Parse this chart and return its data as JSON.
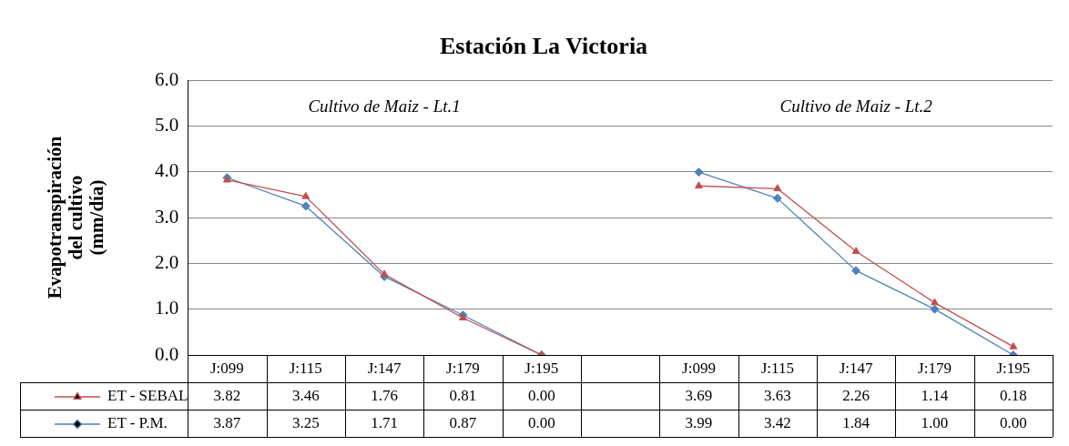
{
  "chart_data": {
    "type": "line",
    "title": "Estación La Victoria",
    "ylabel": "Evapotranspiración del cultivo (mm/día)",
    "categories": [
      "J:099",
      "J:115",
      "J:147",
      "J:179",
      "J:195",
      null,
      "J:099",
      "J:115",
      "J:147",
      "J:179",
      "J:195"
    ],
    "series": [
      {
        "name": "ET - SEBAL",
        "color": "#c0504d",
        "marker": "triangle",
        "values": [
          3.82,
          3.46,
          1.76,
          0.81,
          0.0,
          null,
          3.69,
          3.63,
          2.26,
          1.14,
          0.18
        ],
        "value_labels": [
          "3.82",
          "3.46",
          "1.76",
          "0.81",
          "0.00",
          null,
          "3.69",
          "3.63",
          "2.26",
          "1.14",
          "0.18"
        ]
      },
      {
        "name": "ET - P.M.",
        "color": "#4f81bd",
        "marker": "diamond",
        "values": [
          3.87,
          3.25,
          1.71,
          0.87,
          0.0,
          null,
          3.99,
          3.42,
          1.84,
          1.0,
          0.0
        ],
        "value_labels": [
          "3.87",
          "3.25",
          "1.71",
          "0.87",
          "0.00",
          null,
          "3.99",
          "3.42",
          "1.84",
          "1.00",
          "0.00"
        ]
      }
    ],
    "ylim": [
      0,
      6
    ],
    "yticks": [
      {
        "value": 0,
        "label": "0.0"
      },
      {
        "value": 1,
        "label": "1.0"
      },
      {
        "value": 2,
        "label": "2.0"
      },
      {
        "value": 3,
        "label": "3.0"
      },
      {
        "value": 4,
        "label": "4.0"
      },
      {
        "value": 5,
        "label": "5.0"
      },
      {
        "value": 6,
        "label": "6.0"
      }
    ],
    "grid": "y",
    "legend": "bottom",
    "line_style": "solid",
    "annotations": [
      "Cultivo de Maiz - Lt.1",
      "Cultivo de Maiz - Lt.2"
    ]
  }
}
